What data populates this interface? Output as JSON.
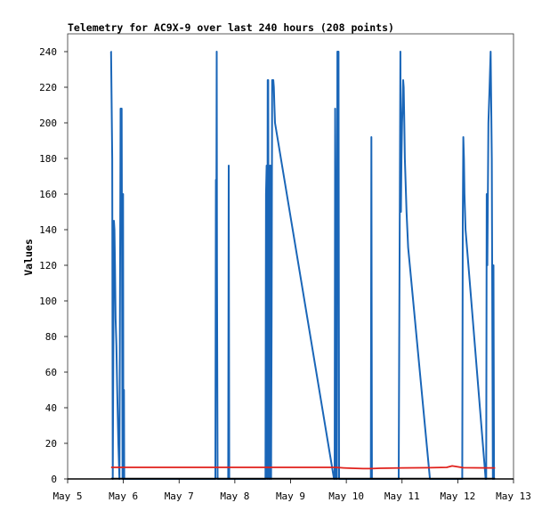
{
  "chart_data": {
    "type": "line",
    "title": "Telemetry for AC9X-9 over last 240 hours (208 points)",
    "xlabel": "",
    "ylabel": "Values",
    "x_unit": "date",
    "xlim": [
      "May 5",
      "May 13"
    ],
    "x_ticks": [
      "May 5",
      "May 6",
      "May 7",
      "May 8",
      "May 9",
      "May 10",
      "May 11",
      "May 12",
      "May 13"
    ],
    "ylim": [
      0,
      250
    ],
    "y_ticks": [
      0,
      20,
      40,
      60,
      80,
      100,
      120,
      140,
      160,
      180,
      200,
      220,
      240
    ],
    "grid": false,
    "legend": "none",
    "series": [
      {
        "color": "#1a66b8",
        "x": [
          5.775,
          5.78,
          5.8,
          5.81,
          5.83,
          5.84,
          5.85,
          5.86,
          5.875,
          5.89,
          5.91,
          5.93,
          5.95,
          5.97,
          5.985,
          5.99,
          5.995,
          6.0,
          6.01,
          6.015,
          6.02,
          6.03,
          6.035,
          6.04,
          6.045,
          6.05,
          6.06,
          7.65,
          7.66,
          7.67,
          7.675,
          7.68,
          7.69,
          7.7,
          7.88,
          7.89,
          7.9,
          8.55,
          8.56,
          8.57,
          8.58,
          8.59,
          8.6,
          8.61,
          8.62,
          8.63,
          8.64,
          8.65,
          8.66,
          8.67,
          8.68,
          8.69,
          8.7,
          8.71,
          8.72,
          9.78,
          9.79,
          9.8,
          9.81,
          9.82,
          9.83,
          9.84,
          9.85,
          9.86,
          9.87,
          9.88,
          10.44,
          10.45,
          10.46,
          10.94,
          10.95,
          10.96,
          10.97,
          10.98,
          10.99,
          11.0,
          11.01,
          11.02,
          11.03,
          11.04,
          11.05,
          11.08,
          11.11,
          11.5,
          12.08,
          12.09,
          12.1,
          12.11,
          12.12,
          12.14,
          12.5,
          12.51,
          12.52,
          12.53,
          12.55,
          12.57,
          12.59,
          12.61,
          12.63,
          12.64,
          12.65,
          12.66
        ],
        "y": [
          240,
          240,
          180,
          0,
          145,
          140,
          120,
          90,
          75,
          50,
          20,
          0,
          208,
          208,
          0,
          150,
          160,
          0,
          50,
          0,
          0,
          0,
          0,
          0,
          0,
          0,
          0,
          0,
          168,
          168,
          240,
          120,
          0,
          0,
          0,
          176,
          0,
          0,
          160,
          176,
          0,
          224,
          224,
          0,
          0,
          176,
          176,
          0,
          90,
          224,
          224,
          224,
          220,
          210,
          200,
          0,
          0,
          208,
          144,
          0,
          0,
          240,
          240,
          240,
          0,
          0,
          0,
          192,
          0,
          0,
          80,
          150,
          240,
          150,
          180,
          200,
          210,
          224,
          220,
          200,
          180,
          150,
          130,
          0,
          0,
          145,
          192,
          180,
          160,
          140,
          0,
          0,
          160,
          120,
          200,
          220,
          240,
          180,
          0,
          120,
          0,
          0
        ]
      },
      {
        "color": "#e0201b",
        "x": [
          5.78,
          6.0,
          7.0,
          8.0,
          9.0,
          9.8,
          9.95,
          10.1,
          10.3,
          10.45,
          10.6,
          11.0,
          11.5,
          11.8,
          11.9,
          12.0,
          12.1,
          12.5,
          12.67
        ],
        "y": [
          6.5,
          6.5,
          6.5,
          6.5,
          6.5,
          6.5,
          6.2,
          6.0,
          5.8,
          5.8,
          6.0,
          6.2,
          6.3,
          6.5,
          7.3,
          6.8,
          6.3,
          6.2,
          6.2
        ]
      },
      {
        "color": "#000000",
        "x": [
          5.78,
          12.67
        ],
        "y": [
          0.2,
          0.2
        ]
      }
    ]
  }
}
